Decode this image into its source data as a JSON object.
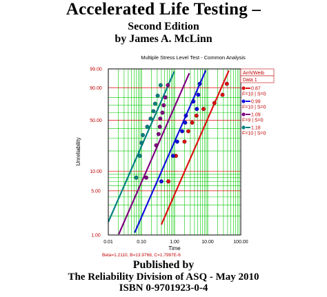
{
  "cover": {
    "title": "Accelerated Life Testing",
    "title_dash": "–",
    "edition": "Second Edition",
    "author": "by James A. McLinn",
    "published_by": "Published by",
    "publisher": "The Reliability Division of ASQ - May 2010",
    "isbn": "ISBN 0-9701923-0-4"
  },
  "colors": {
    "grid": "#00c800",
    "grid_red": "#e00000",
    "axis_text": "#c00000",
    "legend_text": "#c00000",
    "series": [
      "#dd1010",
      "#1010dd",
      "#800080",
      "#008080"
    ]
  },
  "chart_data": {
    "type": "scatter",
    "title": "Multiple Stress Level Test - Common Analysis",
    "xlabel": "Time",
    "ylabel": "Unreliability",
    "xscale": "log",
    "yscale": "weibull-probability",
    "xlim": [
      0.01,
      100
    ],
    "ylim": [
      1,
      99
    ],
    "x_ticks": [
      "0.01",
      "0.10",
      "1.00",
      "10.00",
      "100.00"
    ],
    "y_ticks": [
      {
        "v": 99,
        "label": "99.00"
      },
      {
        "v": 90,
        "label": "90.00"
      },
      {
        "v": 50,
        "label": "50.00"
      },
      {
        "v": 10,
        "label": "10.00"
      },
      {
        "v": 5,
        "label": "5.00"
      },
      {
        "v": 1,
        "label": "1.00"
      }
    ],
    "grid": true,
    "legend": {
      "header": "Arrh/Weib",
      "data_label": "Data 1",
      "entries": [
        {
          "value": "0.87",
          "info": "F=10 | S=0"
        },
        {
          "value": "0.99",
          "info": "F=10 | S=0"
        },
        {
          "value": "1.09",
          "info": "F=9 | S=0"
        },
        {
          "value": "1.18",
          "info": "F=10 | S=0"
        }
      ]
    },
    "params_text": "Beta=1.2110, B=13.9768, C=1.7997E-6",
    "series": [
      {
        "name": "0.87",
        "eta": 13.0,
        "line_x": [
          0.4,
          100
        ],
        "points": [
          {
            "x": 0.65,
            "y": 7
          },
          {
            "x": 1.1,
            "y": 17
          },
          {
            "x": 2.0,
            "y": 27
          },
          {
            "x": 2.6,
            "y": 37
          },
          {
            "x": 3.4,
            "y": 47
          },
          {
            "x": 4.6,
            "y": 56
          },
          {
            "x": 7.5,
            "y": 65
          },
          {
            "x": 16,
            "y": 73
          },
          {
            "x": 28,
            "y": 83
          },
          {
            "x": 38,
            "y": 93
          }
        ]
      },
      {
        "name": "0.99",
        "eta": 2.6,
        "line_x": [
          0.055,
          10
        ],
        "points": [
          {
            "x": 0.4,
            "y": 7
          },
          {
            "x": 0.9,
            "y": 17
          },
          {
            "x": 1.2,
            "y": 27
          },
          {
            "x": 1.7,
            "y": 37
          },
          {
            "x": 2.1,
            "y": 47
          },
          {
            "x": 2.2,
            "y": 56
          },
          {
            "x": 4.7,
            "y": 65
          },
          {
            "x": 3.7,
            "y": 75
          },
          {
            "x": 5.2,
            "y": 83
          },
          {
            "x": 5.8,
            "y": 93
          }
        ]
      },
      {
        "name": "1.09",
        "eta": 0.9,
        "line_x": [
          0.013,
          6
        ],
        "points": [
          {
            "x": 0.14,
            "y": 8
          },
          {
            "x": 0.28,
            "y": 24
          },
          {
            "x": 0.33,
            "y": 34
          },
          {
            "x": 0.36,
            "y": 42
          },
          {
            "x": 0.37,
            "y": 52
          },
          {
            "x": 0.43,
            "y": 60
          },
          {
            "x": 0.47,
            "y": 70
          },
          {
            "x": 0.53,
            "y": 80
          },
          {
            "x": 0.63,
            "y": 92
          }
        ]
      },
      {
        "name": "1.18",
        "eta": 0.3,
        "line_x": [
          0.01,
          1.1
        ],
        "points": [
          {
            "x": 0.07,
            "y": 8
          },
          {
            "x": 0.09,
            "y": 17
          },
          {
            "x": 0.1,
            "y": 26
          },
          {
            "x": 0.11,
            "y": 33
          },
          {
            "x": 0.15,
            "y": 42
          },
          {
            "x": 0.19,
            "y": 52
          },
          {
            "x": 0.23,
            "y": 62
          },
          {
            "x": 0.26,
            "y": 72
          },
          {
            "x": 0.31,
            "y": 82
          },
          {
            "x": 0.38,
            "y": 92
          }
        ]
      }
    ]
  }
}
